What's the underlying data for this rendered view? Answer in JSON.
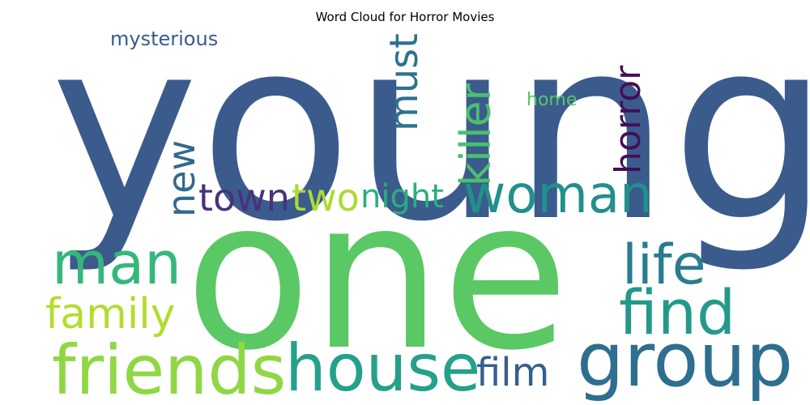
{
  "chart_data": {
    "type": "wordcloud",
    "title": "Word Cloud for Horror Movies",
    "words": [
      {
        "text": "young",
        "color": "#3b5b8c"
      },
      {
        "text": "one",
        "color": "#5ac864"
      },
      {
        "text": "woman",
        "color": "#21908c"
      },
      {
        "text": "group",
        "color": "#2e6e8e"
      },
      {
        "text": "house",
        "color": "#25a08a"
      },
      {
        "text": "friends",
        "color": "#8fd744"
      },
      {
        "text": "find",
        "color": "#23998b"
      },
      {
        "text": "life",
        "color": "#287d8e"
      },
      {
        "text": "man",
        "color": "#35b779"
      },
      {
        "text": "killer",
        "color": "#4ac16d"
      },
      {
        "text": "horror",
        "color": "#440e57"
      },
      {
        "text": "must",
        "color": "#2c728e"
      },
      {
        "text": "new",
        "color": "#31688e"
      },
      {
        "text": "town",
        "color": "#46337e"
      },
      {
        "text": "two",
        "color": "#a9db33"
      },
      {
        "text": "night",
        "color": "#29af7f"
      },
      {
        "text": "family",
        "color": "#b1dd2f"
      },
      {
        "text": "film",
        "color": "#355f8d"
      },
      {
        "text": "mysterious",
        "color": "#365c8d"
      },
      {
        "text": "home",
        "color": "#55c667"
      }
    ]
  }
}
